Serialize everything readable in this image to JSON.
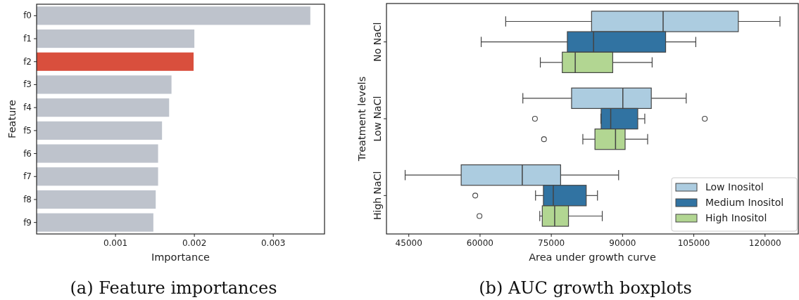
{
  "chart_data": [
    {
      "type": "bar",
      "orientation": "horizontal",
      "title": "(a) Feature importances",
      "xlabel": "Importance",
      "ylabel": "Feature",
      "categories": [
        "f0",
        "f1",
        "f2",
        "f3",
        "f4",
        "f5",
        "f6",
        "f7",
        "f8",
        "f9"
      ],
      "values": [
        0.00347,
        0.002,
        0.00199,
        0.00171,
        0.00168,
        0.00159,
        0.00154,
        0.00154,
        0.00151,
        0.00148
      ],
      "colors": [
        "#bec3cc",
        "#bec3cc",
        "#d94f3d",
        "#bec3cc",
        "#bec3cc",
        "#bec3cc",
        "#bec3cc",
        "#bec3cc",
        "#bec3cc",
        "#bec3cc"
      ],
      "xlim": [
        0,
        0.00365
      ],
      "xticks": [
        0.001,
        0.002,
        0.003
      ],
      "grid": false
    },
    {
      "type": "box",
      "orientation": "horizontal",
      "title": "(b) AUC growth boxplots",
      "xlabel": "Area under growth curve",
      "ylabel": "Treatment levels",
      "categories": [
        "No NaCl",
        "Low NaCl",
        "High NaCl"
      ],
      "xlim": [
        40300,
        127000
      ],
      "xticks": [
        45000,
        60000,
        75000,
        90000,
        105000,
        120000
      ],
      "grid": false,
      "legend": "bottom right",
      "series": [
        {
          "name": "Low Inositol",
          "color": "#accce0",
          "boxes": [
            {
              "low": 65400,
              "q1": 83480,
              "median": 98540,
              "q3": 114370,
              "high": 123140
            },
            {
              "low": 69010,
              "q1": 79270,
              "median": 90060,
              "q3": 96050,
              "high": 103400
            },
            {
              "low": 44230,
              "q1": 56030,
              "median": 68890,
              "q3": 76960,
              "high": 89170
            }
          ]
        },
        {
          "name": "Medium Inositol",
          "color": "#3173a2",
          "boxes": [
            {
              "low": 60240,
              "q1": 78380,
              "median": 83900,
              "q3": 99070,
              "high": 105420
            },
            {
              "low": 85430,
              "q1": 85500,
              "median": 87510,
              "q3": 93200,
              "high": 94680,
              "outliers": [
                71560,
                107310
              ]
            },
            {
              "low": 71680,
              "q1": 73340,
              "median": 75420,
              "q3": 82350,
              "high": 84720,
              "outliers": [
                58990
              ]
            }
          ]
        },
        {
          "name": "High Inositol",
          "color": "#b2d692",
          "boxes": [
            {
              "low": 72690,
              "q1": 77310,
              "median": 80040,
              "q3": 87930,
              "high": 96230
            },
            {
              "low": 81640,
              "q1": 84190,
              "median": 88520,
              "q3": 90540,
              "high": 95280,
              "outliers": [
                73460
              ]
            },
            {
              "low": 72570,
              "q1": 73100,
              "median": 75710,
              "q3": 78620,
              "high": 85730,
              "outliers": [
                59880
              ]
            }
          ]
        }
      ]
    }
  ]
}
